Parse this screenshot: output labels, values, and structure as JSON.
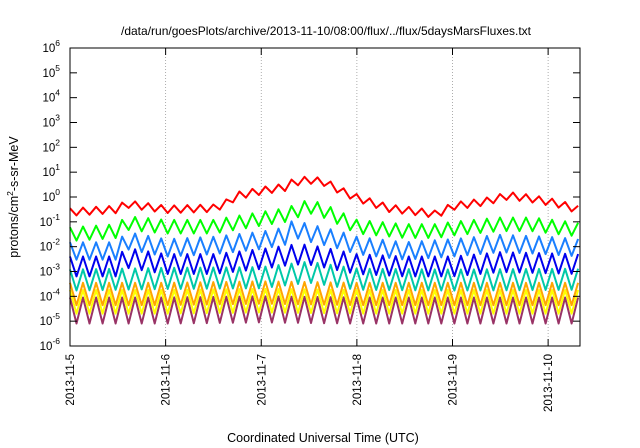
{
  "chart_data": {
    "type": "line",
    "title": "/data/run/goesPlots/archive/2013-11-10/08:00/flux/../flux/5daysMarsFluxes.txt",
    "xlabel": "Coordinated Universal Time (UTC)",
    "ylabel": "protons/cm²-s-sr-MeV",
    "ylabel_parts": {
      "base": "protons/cm",
      "sup": "2",
      "rest": "-s-sr-MeV"
    },
    "y_scale": "log",
    "ylim": [
      1e-06,
      1000000.0
    ],
    "y_ticks": [
      {
        "base": "10",
        "exp": "6",
        "value": 1000000.0
      },
      {
        "base": "10",
        "exp": "5",
        "value": 100000.0
      },
      {
        "base": "10",
        "exp": "4",
        "value": 10000.0
      },
      {
        "base": "10",
        "exp": "3",
        "value": 1000.0
      },
      {
        "base": "10",
        "exp": "2",
        "value": 100.0
      },
      {
        "base": "10",
        "exp": "1",
        "value": 10.0
      },
      {
        "base": "10",
        "exp": "0",
        "value": 1.0
      },
      {
        "base": "10",
        "exp": "-1",
        "value": 0.1
      },
      {
        "base": "10",
        "exp": "-2",
        "value": 0.01
      },
      {
        "base": "10",
        "exp": "-3",
        "value": 0.001
      },
      {
        "base": "10",
        "exp": "-4",
        "value": 0.0001
      },
      {
        "base": "10",
        "exp": "-5",
        "value": 1e-05
      },
      {
        "base": "10",
        "exp": "-6",
        "value": 1e-06
      }
    ],
    "x_range_days": [
      "2013-11-05T00:00",
      "2013-11-10T08:00"
    ],
    "x_ticks": [
      "2013-11-5",
      "2013-11-6",
      "2013-11-7",
      "2013-11-8",
      "2013-11-9",
      "2013-11-10"
    ],
    "grid": "vertical dotted at x ticks",
    "legend": "none",
    "sawtooth_period_hours": 3.27,
    "series": [
      {
        "color": "#ff0000",
        "sawtooth_depth_decades": 0.3,
        "envelope": [
          [
            "2013-11-05T00:00",
            0.35
          ],
          [
            "2013-11-05T12:00",
            0.45
          ],
          [
            "2013-11-05T14:00",
            0.75
          ],
          [
            "2013-11-06T00:00",
            0.45
          ],
          [
            "2013-11-06T12:00",
            0.5
          ],
          [
            "2013-11-06T15:00",
            0.75
          ],
          [
            "2013-11-06T18:00",
            1.6
          ],
          [
            "2013-11-07T00:00",
            2.5
          ],
          [
            "2013-11-07T06:00",
            3.5
          ],
          [
            "2013-11-07T08:00",
            5.5
          ],
          [
            "2013-11-07T12:00",
            7
          ],
          [
            "2013-11-07T16:00",
            5.5
          ],
          [
            "2013-11-07T20:00",
            2.5
          ],
          [
            "2013-11-08T00:00",
            1.3
          ],
          [
            "2013-11-08T08:00",
            0.5
          ],
          [
            "2013-11-08T16:00",
            0.35
          ],
          [
            "2013-11-08T20:00",
            0.28
          ],
          [
            "2013-11-09T00:00",
            0.6
          ],
          [
            "2013-11-09T08:00",
            0.9
          ],
          [
            "2013-11-09T14:00",
            1.6
          ],
          [
            "2013-11-09T20:00",
            1.2
          ],
          [
            "2013-11-10T02:00",
            0.8
          ],
          [
            "2013-11-10T08:00",
            0.42
          ]
        ]
      },
      {
        "color": "#00ff00",
        "sawtooth_depth_decades": 0.55,
        "envelope": [
          [
            "2013-11-05T00:00",
            0.06
          ],
          [
            "2013-11-05T12:00",
            0.08
          ],
          [
            "2013-11-05T14:00",
            0.17
          ],
          [
            "2013-11-06T00:00",
            0.12
          ],
          [
            "2013-11-06T12:00",
            0.12
          ],
          [
            "2013-11-07T00:00",
            0.25
          ],
          [
            "2013-11-07T06:00",
            0.35
          ],
          [
            "2013-11-07T12:00",
            0.8
          ],
          [
            "2013-11-07T16:00",
            0.5
          ],
          [
            "2013-11-07T20:00",
            0.25
          ],
          [
            "2013-11-08T00:00",
            0.12
          ],
          [
            "2013-11-08T12:00",
            0.08
          ],
          [
            "2013-11-08T20:00",
            0.08
          ],
          [
            "2013-11-09T00:00",
            0.1
          ],
          [
            "2013-11-09T12:00",
            0.15
          ],
          [
            "2013-11-09T20:00",
            0.15
          ],
          [
            "2013-11-10T08:00",
            0.09
          ]
        ]
      },
      {
        "color": "#1a7fff",
        "sawtooth_depth_decades": 0.7,
        "envelope": [
          [
            "2013-11-05T00:00",
            0.015
          ],
          [
            "2013-11-05T12:00",
            0.015
          ],
          [
            "2013-11-05T14:00",
            0.04
          ],
          [
            "2013-11-06T00:00",
            0.02
          ],
          [
            "2013-11-06T12:00",
            0.025
          ],
          [
            "2013-11-07T00:00",
            0.04
          ],
          [
            "2013-11-07T06:00",
            0.06
          ],
          [
            "2013-11-07T08:00",
            0.12
          ],
          [
            "2013-11-07T12:00",
            0.08
          ],
          [
            "2013-11-07T20:00",
            0.04
          ],
          [
            "2013-11-08T00:00",
            0.025
          ],
          [
            "2013-11-08T12:00",
            0.015
          ],
          [
            "2013-11-09T00:00",
            0.02
          ],
          [
            "2013-11-09T12:00",
            0.03
          ],
          [
            "2013-11-10T00:00",
            0.025
          ],
          [
            "2013-11-10T08:00",
            0.02
          ]
        ]
      },
      {
        "color": "#0000ee",
        "sawtooth_depth_decades": 0.8,
        "envelope": [
          [
            "2013-11-05T00:00",
            0.004
          ],
          [
            "2013-11-05T12:00",
            0.004
          ],
          [
            "2013-11-05T14:00",
            0.009
          ],
          [
            "2013-11-06T00:00",
            0.005
          ],
          [
            "2013-11-06T12:00",
            0.005
          ],
          [
            "2013-11-07T00:00",
            0.008
          ],
          [
            "2013-11-07T08:00",
            0.012
          ],
          [
            "2013-11-07T12:00",
            0.012
          ],
          [
            "2013-11-08T00:00",
            0.005
          ],
          [
            "2013-11-08T12:00",
            0.004
          ],
          [
            "2013-11-09T00:00",
            0.004
          ],
          [
            "2013-11-09T12:00",
            0.006
          ],
          [
            "2013-11-10T08:00",
            0.005
          ]
        ]
      },
      {
        "color": "#00c8a8",
        "sawtooth_depth_decades": 0.85,
        "envelope": [
          [
            "2013-11-05T00:00",
            0.0012
          ],
          [
            "2013-11-06T00:00",
            0.0014
          ],
          [
            "2013-11-07T00:00",
            0.0015
          ],
          [
            "2013-11-07T12:00",
            0.0025
          ],
          [
            "2013-11-08T00:00",
            0.0013
          ],
          [
            "2013-11-09T00:00",
            0.0012
          ],
          [
            "2013-11-10T08:00",
            0.0013
          ]
        ]
      },
      {
        "color": "#ffa500",
        "sawtooth_depth_decades": 0.9,
        "envelope": [
          [
            "2013-11-05T00:00",
            0.00035
          ],
          [
            "2013-11-06T00:00",
            0.00035
          ],
          [
            "2013-11-07T00:00",
            0.0004
          ],
          [
            "2013-11-08T00:00",
            0.00035
          ],
          [
            "2013-11-09T00:00",
            0.00035
          ],
          [
            "2013-11-10T08:00",
            0.00035
          ]
        ]
      },
      {
        "color": "#ffff00",
        "sawtooth_depth_decades": 0.95,
        "envelope": [
          [
            "2013-11-05T00:00",
            0.00018
          ],
          [
            "2013-11-06T00:00",
            0.00018
          ],
          [
            "2013-11-07T00:00",
            0.0002
          ],
          [
            "2013-11-08T00:00",
            0.00018
          ],
          [
            "2013-11-09T00:00",
            0.00018
          ],
          [
            "2013-11-10T08:00",
            0.00018
          ]
        ]
      },
      {
        "color": "#993366",
        "sawtooth_depth_decades": 1.05,
        "envelope": [
          [
            "2013-11-05T00:00",
            9e-05
          ],
          [
            "2013-11-06T00:00",
            9e-05
          ],
          [
            "2013-11-07T00:00",
            0.0001
          ],
          [
            "2013-11-08T00:00",
            9e-05
          ],
          [
            "2013-11-09T00:00",
            9e-05
          ],
          [
            "2013-11-10T08:00",
            9e-05
          ]
        ]
      }
    ]
  }
}
